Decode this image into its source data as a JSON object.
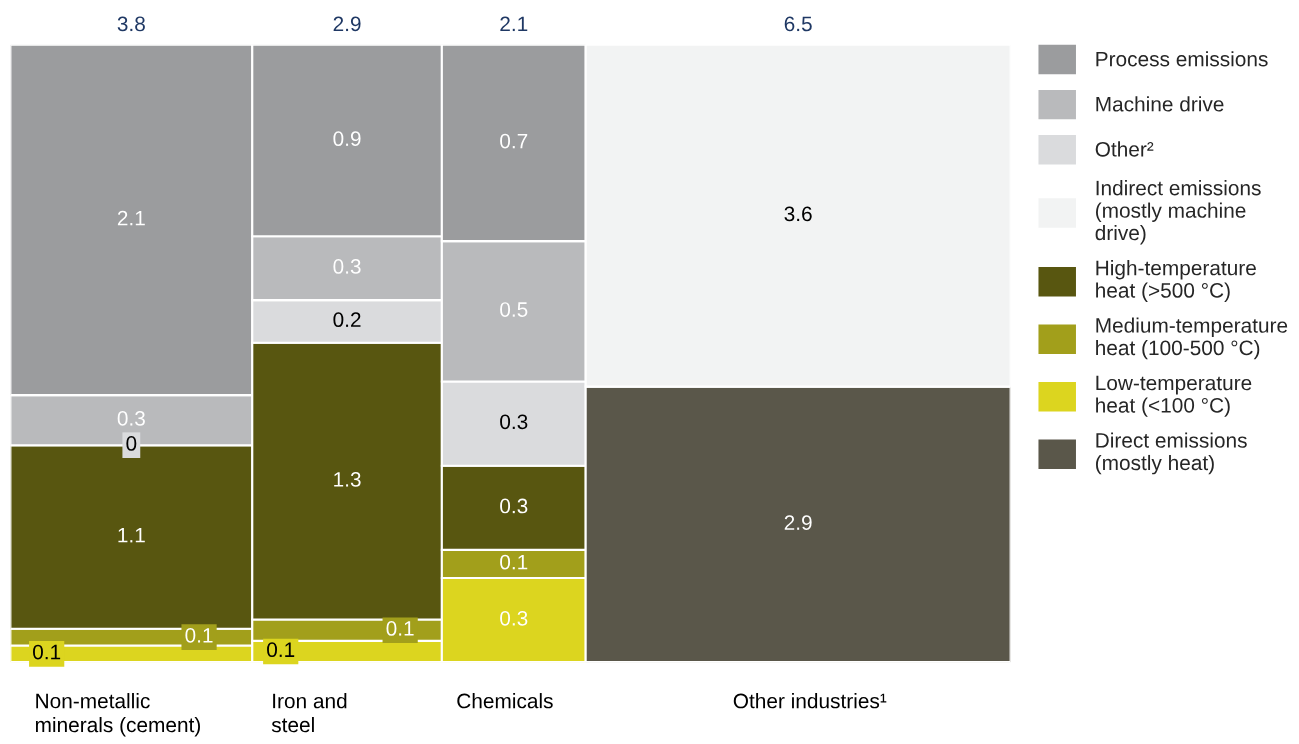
{
  "chart_data": {
    "type": "other",
    "data_labels": true,
    "legend": "right",
    "categories": [
      "Non-metallic\nminerals (cement)",
      "Iron and\nsteel",
      "Chemicals",
      "Other industries¹"
    ],
    "totals": [
      "3.8",
      "2.9",
      "2.1",
      "6.5"
    ],
    "series": [
      {
        "name": "Direct emissions\n(mostly heat)",
        "color": "#5a574a",
        "values": [
          null,
          null,
          null,
          2.9
        ]
      },
      {
        "name": "Low-temperature\nheat (<100 °C)",
        "color": "#dcd51f",
        "values": [
          0.1,
          0.1,
          0.3,
          null
        ]
      },
      {
        "name": "Medium-temperature\nheat (100-500 °C)",
        "color": "#a29f1b",
        "values": [
          0.1,
          0.1,
          0.1,
          null
        ]
      },
      {
        "name": "High-temperature\nheat (>500 °C)",
        "color": "#585610",
        "values": [
          1.1,
          1.3,
          0.3,
          null
        ]
      },
      {
        "name": "Indirect emissions\n(mostly machine\ndrive)",
        "color": "#f2f3f3",
        "values": [
          null,
          null,
          null,
          3.6
        ]
      },
      {
        "name": "Other²",
        "color": "#dadbdd",
        "values": [
          0,
          0.2,
          0.3,
          null
        ]
      },
      {
        "name": "Machine drive",
        "color": "#b9babc",
        "values": [
          0.3,
          0.3,
          0.5,
          null
        ]
      },
      {
        "name": "Process emissions",
        "color": "#9b9c9e",
        "values": [
          2.1,
          0.9,
          0.7,
          null
        ]
      }
    ]
  }
}
